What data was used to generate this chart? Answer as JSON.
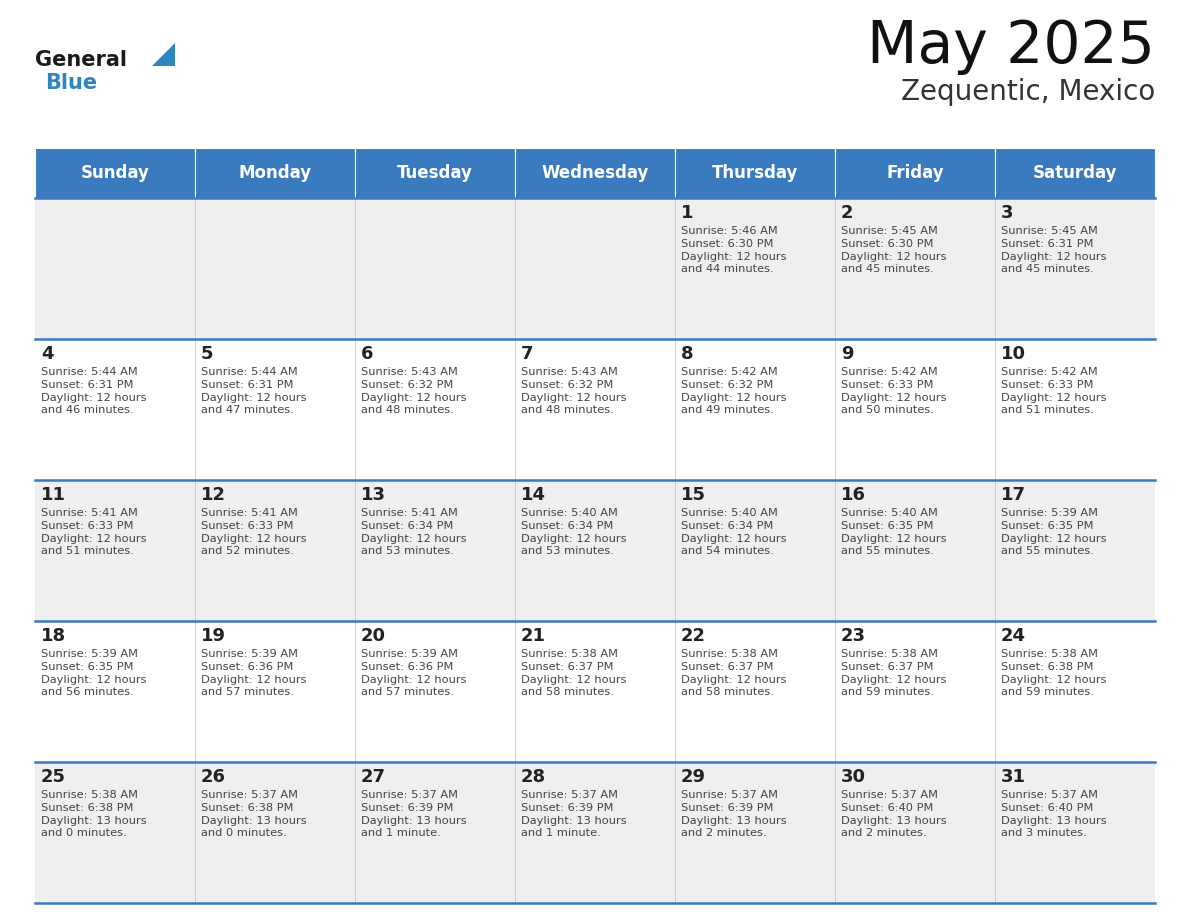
{
  "title": "May 2025",
  "subtitle": "Zequentic, Mexico",
  "header_color": "#3a7abf",
  "header_text_color": "#ffffff",
  "cell_bg_odd": "#efefef",
  "cell_bg_even": "#ffffff",
  "day_names": [
    "Sunday",
    "Monday",
    "Tuesday",
    "Wednesday",
    "Thursday",
    "Friday",
    "Saturday"
  ],
  "text_color": "#444444",
  "number_color": "#222222",
  "divider_color": "#3a7abf",
  "logo_general_color": "#1a1a1a",
  "logo_blue_color": "#2e86c1",
  "logo_triangle_color": "#2e86c1",
  "calendar": [
    [
      {
        "day": null
      },
      {
        "day": null
      },
      {
        "day": null
      },
      {
        "day": null
      },
      {
        "day": 1,
        "sunrise": "5:46 AM",
        "sunset": "6:30 PM",
        "daylight": "12 hours and 44 minutes."
      },
      {
        "day": 2,
        "sunrise": "5:45 AM",
        "sunset": "6:30 PM",
        "daylight": "12 hours and 45 minutes."
      },
      {
        "day": 3,
        "sunrise": "5:45 AM",
        "sunset": "6:31 PM",
        "daylight": "12 hours and 45 minutes."
      }
    ],
    [
      {
        "day": 4,
        "sunrise": "5:44 AM",
        "sunset": "6:31 PM",
        "daylight": "12 hours and 46 minutes."
      },
      {
        "day": 5,
        "sunrise": "5:44 AM",
        "sunset": "6:31 PM",
        "daylight": "12 hours and 47 minutes."
      },
      {
        "day": 6,
        "sunrise": "5:43 AM",
        "sunset": "6:32 PM",
        "daylight": "12 hours and 48 minutes."
      },
      {
        "day": 7,
        "sunrise": "5:43 AM",
        "sunset": "6:32 PM",
        "daylight": "12 hours and 48 minutes."
      },
      {
        "day": 8,
        "sunrise": "5:42 AM",
        "sunset": "6:32 PM",
        "daylight": "12 hours and 49 minutes."
      },
      {
        "day": 9,
        "sunrise": "5:42 AM",
        "sunset": "6:33 PM",
        "daylight": "12 hours and 50 minutes."
      },
      {
        "day": 10,
        "sunrise": "5:42 AM",
        "sunset": "6:33 PM",
        "daylight": "12 hours and 51 minutes."
      }
    ],
    [
      {
        "day": 11,
        "sunrise": "5:41 AM",
        "sunset": "6:33 PM",
        "daylight": "12 hours and 51 minutes."
      },
      {
        "day": 12,
        "sunrise": "5:41 AM",
        "sunset": "6:33 PM",
        "daylight": "12 hours and 52 minutes."
      },
      {
        "day": 13,
        "sunrise": "5:41 AM",
        "sunset": "6:34 PM",
        "daylight": "12 hours and 53 minutes."
      },
      {
        "day": 14,
        "sunrise": "5:40 AM",
        "sunset": "6:34 PM",
        "daylight": "12 hours and 53 minutes."
      },
      {
        "day": 15,
        "sunrise": "5:40 AM",
        "sunset": "6:34 PM",
        "daylight": "12 hours and 54 minutes."
      },
      {
        "day": 16,
        "sunrise": "5:40 AM",
        "sunset": "6:35 PM",
        "daylight": "12 hours and 55 minutes."
      },
      {
        "day": 17,
        "sunrise": "5:39 AM",
        "sunset": "6:35 PM",
        "daylight": "12 hours and 55 minutes."
      }
    ],
    [
      {
        "day": 18,
        "sunrise": "5:39 AM",
        "sunset": "6:35 PM",
        "daylight": "12 hours and 56 minutes."
      },
      {
        "day": 19,
        "sunrise": "5:39 AM",
        "sunset": "6:36 PM",
        "daylight": "12 hours and 57 minutes."
      },
      {
        "day": 20,
        "sunrise": "5:39 AM",
        "sunset": "6:36 PM",
        "daylight": "12 hours and 57 minutes."
      },
      {
        "day": 21,
        "sunrise": "5:38 AM",
        "sunset": "6:37 PM",
        "daylight": "12 hours and 58 minutes."
      },
      {
        "day": 22,
        "sunrise": "5:38 AM",
        "sunset": "6:37 PM",
        "daylight": "12 hours and 58 minutes."
      },
      {
        "day": 23,
        "sunrise": "5:38 AM",
        "sunset": "6:37 PM",
        "daylight": "12 hours and 59 minutes."
      },
      {
        "day": 24,
        "sunrise": "5:38 AM",
        "sunset": "6:38 PM",
        "daylight": "12 hours and 59 minutes."
      }
    ],
    [
      {
        "day": 25,
        "sunrise": "5:38 AM",
        "sunset": "6:38 PM",
        "daylight": "13 hours and 0 minutes."
      },
      {
        "day": 26,
        "sunrise": "5:37 AM",
        "sunset": "6:38 PM",
        "daylight": "13 hours and 0 minutes."
      },
      {
        "day": 27,
        "sunrise": "5:37 AM",
        "sunset": "6:39 PM",
        "daylight": "13 hours and 1 minute."
      },
      {
        "day": 28,
        "sunrise": "5:37 AM",
        "sunset": "6:39 PM",
        "daylight": "13 hours and 1 minute."
      },
      {
        "day": 29,
        "sunrise": "5:37 AM",
        "sunset": "6:39 PM",
        "daylight": "13 hours and 2 minutes."
      },
      {
        "day": 30,
        "sunrise": "5:37 AM",
        "sunset": "6:40 PM",
        "daylight": "13 hours and 2 minutes."
      },
      {
        "day": 31,
        "sunrise": "5:37 AM",
        "sunset": "6:40 PM",
        "daylight": "13 hours and 3 minutes."
      }
    ]
  ]
}
